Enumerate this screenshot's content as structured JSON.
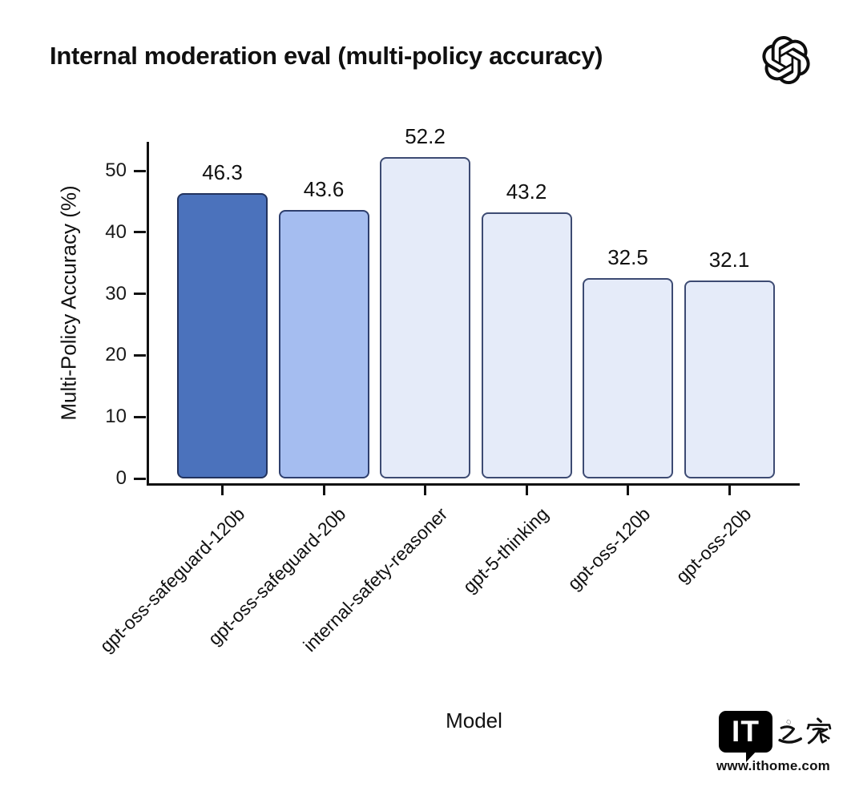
{
  "chart_data": {
    "type": "bar",
    "title": "Internal moderation eval (multi-policy accuracy)",
    "xlabel": "Model",
    "ylabel": "Multi-Policy Accuracy (%)",
    "categories": [
      "gpt-oss-safeguard-120b",
      "gpt-oss-safeguard-20b",
      "internal-safety-reasoner",
      "gpt-5-thinking",
      "gpt-oss-120b",
      "gpt-oss-20b"
    ],
    "values": [
      46.3,
      43.6,
      52.2,
      43.2,
      32.5,
      32.1
    ],
    "value_labels": [
      "46.3",
      "43.6",
      "52.2",
      "43.2",
      "32.5",
      "32.1"
    ],
    "bar_fill_colors": [
      "#4b72bc",
      "#a5bdf0",
      "#e5ebf9",
      "#e5ebf9",
      "#e5ebf9",
      "#e5ebf9"
    ],
    "bar_border_colors": [
      "#22335e",
      "#2e3f6e",
      "#3d4b73",
      "#3d4b73",
      "#3d4b73",
      "#3d4b73"
    ],
    "yticks": [
      0,
      10,
      20,
      30,
      40,
      50
    ],
    "ylim": [
      0,
      55
    ],
    "grid": false,
    "legend": "none",
    "axis_color": "#111111"
  },
  "header": {
    "logo": "openai-logo"
  },
  "footer_branding": {
    "bubble_text": "IT",
    "site_name_cjk": "之家",
    "url": "www.ithome.com"
  }
}
